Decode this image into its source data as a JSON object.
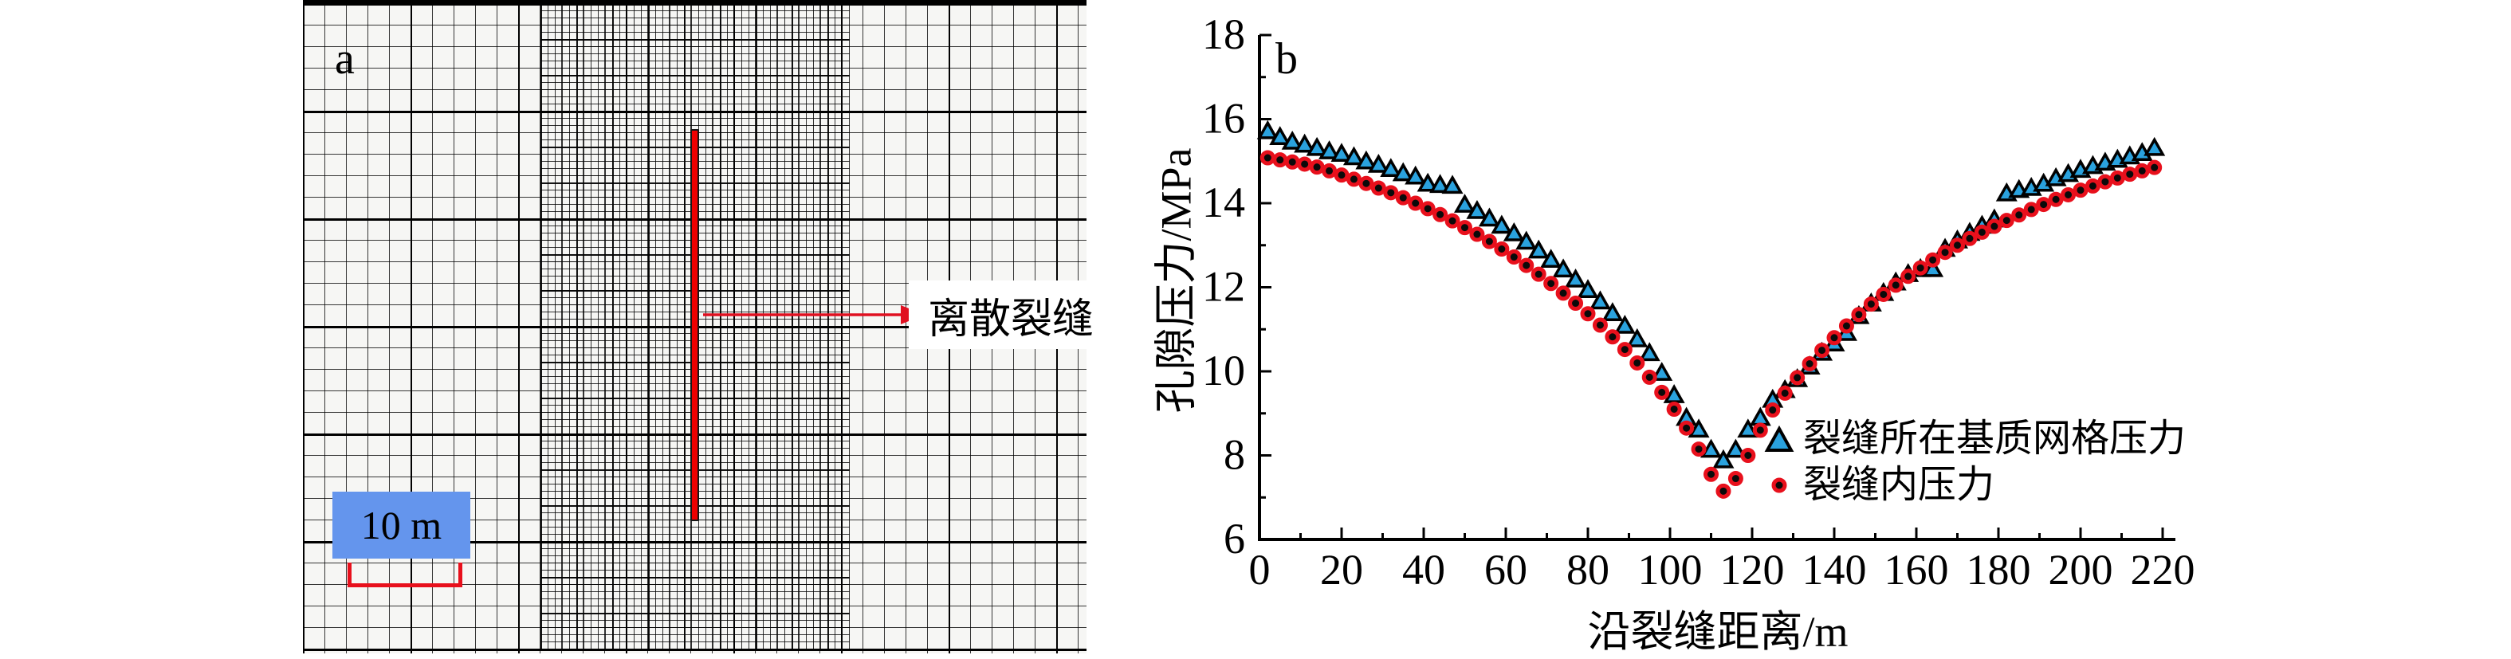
{
  "panel_a": {
    "label": "a",
    "fracture_label": "离散裂缝",
    "scale_label": "10 m"
  },
  "panel_b": {
    "label": "b"
  },
  "colors": {
    "triangle_fill": "#2aa2de",
    "triangle_edge": "#000000",
    "circle_fill": "#0a0a0a",
    "circle_edge": "#e8101c",
    "fracture_red": "#ee0000",
    "arrow_red": "#e01020",
    "scale_box_blue": "#6495ed",
    "bracket_red": "#e8101c"
  },
  "chart_data": {
    "type": "scatter",
    "title": "",
    "xlabel": "沿裂缝距离/m",
    "ylabel": "孔隙压力/MPa",
    "xlim": [
      0,
      220
    ],
    "ylim": [
      6,
      18
    ],
    "x_major_step": 20,
    "x_minor_step": 10,
    "y_major_step": 2,
    "y_minor_step": 1,
    "grid": false,
    "legend_position": "inside-middle-right",
    "x": [
      2,
      5,
      8,
      11,
      14,
      17,
      20,
      23,
      26,
      29,
      32,
      35,
      38,
      41,
      44,
      47,
      50,
      53,
      56,
      59,
      62,
      65,
      68,
      71,
      74,
      77,
      80,
      83,
      86,
      89,
      92,
      95,
      98,
      101,
      104,
      107,
      110,
      113,
      116,
      119,
      122,
      125,
      128,
      131,
      134,
      137,
      140,
      143,
      146,
      149,
      152,
      155,
      158,
      161,
      164,
      167,
      170,
      173,
      176,
      179,
      182,
      185,
      188,
      191,
      194,
      197,
      200,
      203,
      206,
      209,
      212,
      215,
      218
    ],
    "series": [
      {
        "name": "裂缝所在基质网格压力",
        "marker": "triangle",
        "values": [
          15.7,
          15.56,
          15.45,
          15.38,
          15.3,
          15.22,
          15.16,
          15.08,
          14.98,
          14.9,
          14.8,
          14.7,
          14.62,
          14.45,
          14.42,
          14.4,
          13.95,
          13.8,
          13.62,
          13.45,
          13.27,
          13.07,
          12.86,
          12.64,
          12.41,
          12.17,
          11.92,
          11.65,
          11.37,
          11.07,
          10.75,
          10.42,
          9.95,
          9.42,
          8.88,
          8.6,
          8.12,
          7.87,
          8.12,
          8.6,
          8.88,
          9.31,
          9.54,
          9.8,
          10.1,
          10.43,
          10.65,
          10.9,
          11.3,
          11.6,
          11.85,
          12.1,
          12.3,
          12.42,
          12.42,
          12.9,
          13.1,
          13.28,
          13.45,
          13.6,
          14.22,
          14.3,
          14.35,
          14.45,
          14.58,
          14.68,
          14.78,
          14.87,
          14.95,
          15.02,
          15.1,
          15.18,
          15.3
        ]
      },
      {
        "name": "裂缝内压力",
        "marker": "circle",
        "values": [
          15.08,
          15.03,
          14.98,
          14.93,
          14.86,
          14.77,
          14.67,
          14.57,
          14.47,
          14.36,
          14.25,
          14.13,
          14.0,
          13.87,
          13.73,
          13.58,
          13.42,
          13.26,
          13.09,
          12.91,
          12.72,
          12.52,
          12.31,
          12.09,
          11.86,
          11.62,
          11.37,
          11.1,
          10.82,
          10.52,
          10.2,
          9.86,
          9.5,
          9.1,
          8.65,
          8.15,
          7.55,
          7.15,
          7.45,
          8.0,
          8.6,
          9.08,
          9.48,
          9.85,
          10.18,
          10.5,
          10.8,
          11.08,
          11.35,
          11.6,
          11.83,
          12.05,
          12.26,
          12.46,
          12.65,
          12.83,
          13.0,
          13.16,
          13.31,
          13.45,
          13.59,
          13.72,
          13.85,
          13.97,
          14.09,
          14.2,
          14.31,
          14.41,
          14.51,
          14.6,
          14.69,
          14.77,
          14.85
        ]
      }
    ]
  }
}
